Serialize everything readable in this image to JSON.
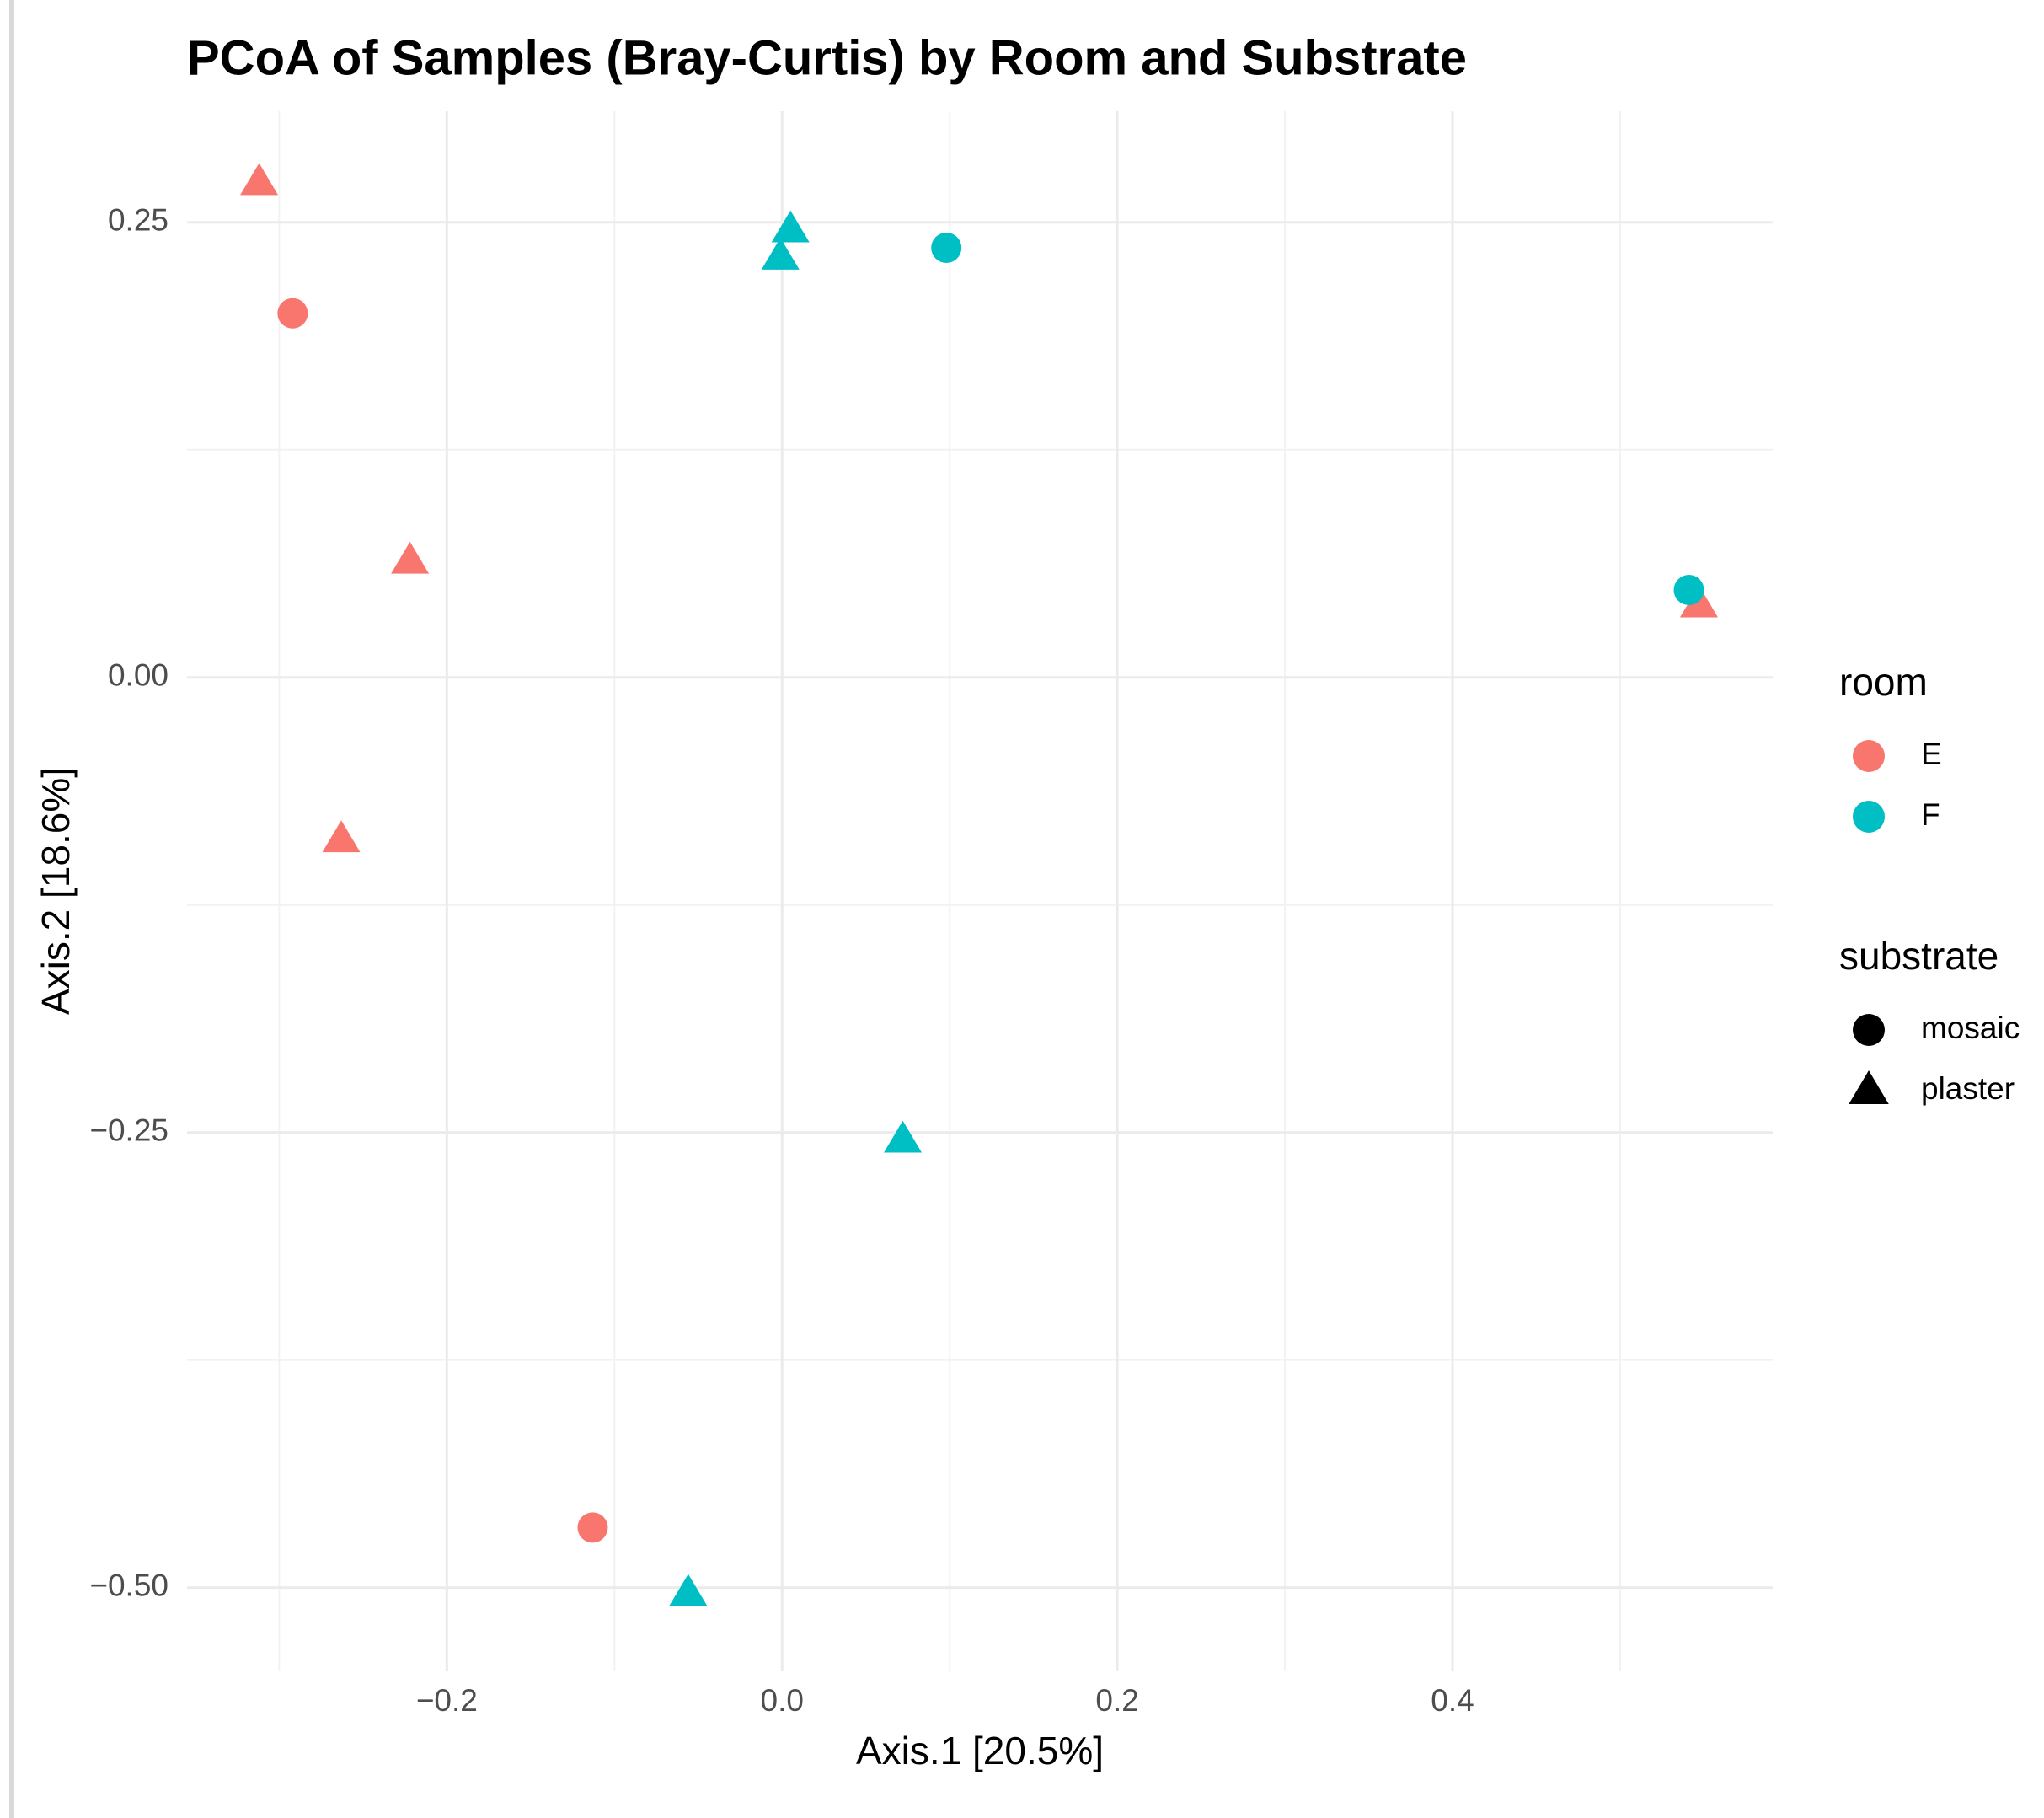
{
  "chart_data": {
    "type": "scatter",
    "title": "PCoA of Samples (Bray-Curtis) by Room and Substrate",
    "x_label": "Axis.1   [20.5%]",
    "y_label": "Axis.2   [18.6%]",
    "xlim": [
      -0.355,
      0.591
    ],
    "ylim": [
      -0.546,
      0.311
    ],
    "xticks": [
      {
        "value": -0.2,
        "label": "−0.2"
      },
      {
        "value": 0,
        "label": "0.0"
      },
      0.2,
      0.4
    ],
    "yticks": [
      {
        "value": -0.5,
        "label": "−0.50"
      },
      {
        "value": -0.25,
        "label": "−0.25"
      },
      {
        "value": 0,
        "label": "0.00"
      },
      0.25
    ],
    "grid": true,
    "color_legend_title": "room",
    "shape_legend": {
      "title": "substrate",
      "names": [
        "mosaic",
        "plaster"
      ],
      "markers": [
        "circle",
        "triangle"
      ]
    },
    "series": [
      {
        "name": "E",
        "color": "#F8766D",
        "x": [
          -0.312,
          -0.292,
          -0.222,
          -0.263,
          -0.113,
          0.547
        ],
        "values": [
          0.272,
          0.2,
          0.064,
          -0.089,
          -0.467,
          0.04
        ],
        "substrate": [
          "plaster",
          "mosaic",
          "plaster",
          "plaster",
          "mosaic",
          "plaster"
        ]
      },
      {
        "name": "F",
        "color": "#00BFC4",
        "x": [
          -0.056,
          0.072,
          0.005,
          -0.001,
          0.098,
          0.541
        ],
        "values": [
          -0.503,
          -0.254,
          0.246,
          0.231,
          0.236,
          0.048
        ],
        "substrate": [
          "plaster",
          "plaster",
          "plaster",
          "plaster",
          "mosaic",
          "mosaic"
        ]
      }
    ]
  }
}
